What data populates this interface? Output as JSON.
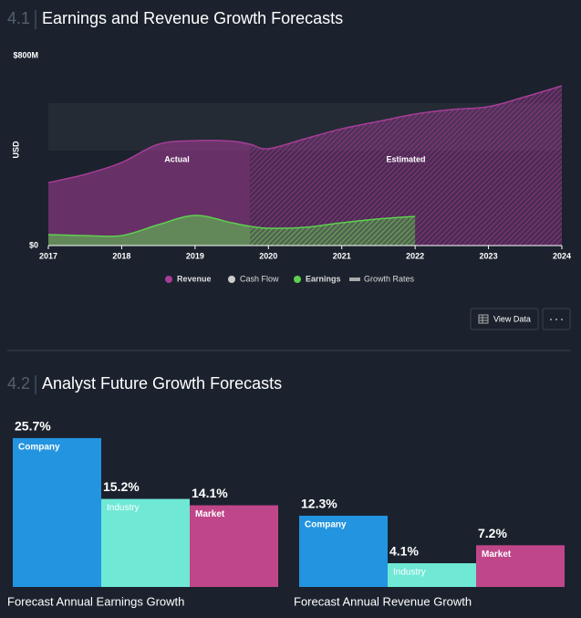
{
  "sections": [
    {
      "number": "4.1",
      "title": "Earnings and Revenue Growth Forecasts"
    },
    {
      "number": "4.2",
      "title": "Analyst Future Growth Forecasts"
    }
  ],
  "buttons": {
    "view_data": "View Data"
  },
  "chart_data": [
    {
      "type": "area",
      "ylabel": "USD",
      "x": [
        2017,
        2017.5,
        2018,
        2018.5,
        2019,
        2019.5,
        2019.75,
        2020,
        2020.5,
        2021,
        2021.5,
        2022,
        2022.5,
        2023,
        2023.5,
        2024
      ],
      "xlim": [
        2017,
        2024
      ],
      "xticks": [
        2017,
        2018,
        2019,
        2020,
        2021,
        2022,
        2023,
        2024
      ],
      "ylim": [
        0,
        800000000
      ],
      "yticks": [
        {
          "value": 0,
          "label": "$0"
        },
        {
          "value": 800000000,
          "label": "$800M"
        }
      ],
      "forecast_start": 2019.75,
      "annotations": [
        "Actual",
        "Estimated"
      ],
      "series": [
        {
          "name": "Revenue",
          "color": "#a63d97",
          "values": [
            265000000,
            300000000,
            350000000,
            427000000,
            442000000,
            440000000,
            427000000,
            408000000,
            450000000,
            492000000,
            523000000,
            554000000,
            573000000,
            585000000,
            627000000,
            673000000
          ]
        },
        {
          "name": "Cash Flow",
          "color": "#cccccc",
          "values": [
            null,
            null,
            null,
            null,
            null,
            null,
            null,
            null,
            null,
            null,
            null,
            null,
            null,
            null,
            null,
            null
          ]
        },
        {
          "name": "Earnings",
          "color": "#5ed14e",
          "values": [
            46000000,
            42000000,
            42000000,
            88000000,
            127000000,
            96000000,
            81000000,
            73000000,
            77000000,
            96000000,
            112000000,
            123000000,
            null,
            null,
            null,
            null
          ]
        },
        {
          "name": "Growth Rates",
          "color": "#aaaaaa",
          "values": [
            null,
            null,
            null,
            null,
            null,
            null,
            null,
            null,
            null,
            null,
            null,
            null,
            null,
            null,
            null,
            null
          ]
        }
      ]
    },
    {
      "type": "bar",
      "title": "Forecast Annual Earnings Growth",
      "categories": [
        "Company",
        "Industry",
        "Market"
      ],
      "values": [
        25.7,
        15.2,
        14.1
      ],
      "value_labels": [
        "25.7%",
        "15.2%",
        "14.1%"
      ],
      "colors": [
        "#2394df",
        "#6fe8d6",
        "#c0468a"
      ],
      "ylim": [
        0,
        26
      ]
    },
    {
      "type": "bar",
      "title": "Forecast Annual Revenue Growth",
      "categories": [
        "Company",
        "Industry",
        "Market"
      ],
      "values": [
        12.3,
        4.1,
        7.2
      ],
      "value_labels": [
        "12.3%",
        "4.1%",
        "7.2%"
      ],
      "colors": [
        "#2394df",
        "#6fe8d6",
        "#c0468a"
      ],
      "ylim": [
        0,
        26
      ]
    }
  ]
}
